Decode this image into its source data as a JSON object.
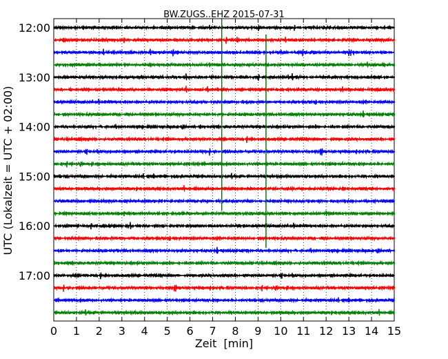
{
  "chart_data": {
    "type": "line",
    "title": "BW.ZUGS..EHZ 2015-07-31",
    "xlabel": "Zeit  [min]",
    "ylabel": "UTC (Lokalzeit = UTC + 02:00)",
    "xlim": [
      0,
      15
    ],
    "x_ticks": [
      "0",
      "1",
      "2",
      "3",
      "4",
      "5",
      "6",
      "7",
      "8",
      "9",
      "10",
      "11",
      "12",
      "13",
      "14",
      "15"
    ],
    "y_tick_labels": [
      "12:00",
      "13:00",
      "14:00",
      "15:00",
      "16:00",
      "17:00"
    ],
    "trace_start_times": [
      "12:00",
      "12:15",
      "12:30",
      "12:45",
      "13:00",
      "13:15",
      "13:30",
      "13:45",
      "14:00",
      "14:15",
      "14:30",
      "14:45",
      "15:00",
      "15:15",
      "15:30",
      "15:45",
      "16:00",
      "16:15",
      "16:30",
      "16:45",
      "17:00",
      "17:15",
      "17:30",
      "17:45"
    ],
    "trace_colors": [
      "#000000",
      "#ff0000",
      "#0000ff",
      "#008000"
    ],
    "grid": true,
    "event_marker": {
      "color": "#008000",
      "start_min": 7.4,
      "end_min": 9.35,
      "start_time": "12:00",
      "end_time": "16:30",
      "connector_trace_time": "13:45"
    }
  }
}
